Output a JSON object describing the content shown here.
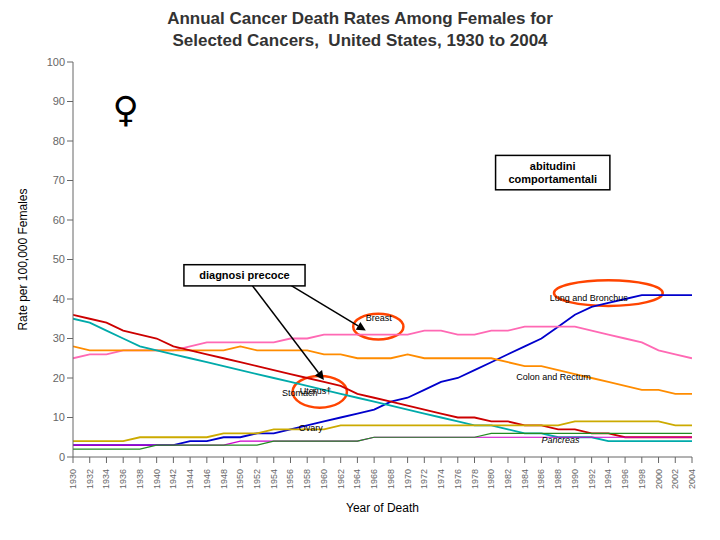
{
  "chart_data": {
    "type": "line",
    "title": "Annual Cancer Death Rates Among Females for",
    "subtitle": "Selected Cancers,  United States, 1930 to 2004",
    "xlabel": "Year of Death",
    "ylabel": "Rate per 100,000 Females",
    "x": [
      1930,
      1932,
      1934,
      1936,
      1938,
      1940,
      1942,
      1944,
      1946,
      1948,
      1950,
      1952,
      1954,
      1956,
      1958,
      1960,
      1962,
      1964,
      1966,
      1968,
      1970,
      1972,
      1974,
      1976,
      1978,
      1980,
      1982,
      1984,
      1986,
      1988,
      1990,
      1992,
      1994,
      1996,
      1998,
      2000,
      2002,
      2004
    ],
    "series": [
      {
        "name": "Lung and Bronchus",
        "color": "#0000cc",
        "values": [
          3,
          3,
          3,
          3,
          3,
          3,
          3,
          4,
          4,
          5,
          5,
          6,
          6,
          7,
          8,
          9,
          10,
          11,
          12,
          14,
          15,
          17,
          19,
          20,
          22,
          24,
          26,
          28,
          30,
          33,
          36,
          38,
          39,
          40,
          41,
          41,
          41,
          41
        ]
      },
      {
        "name": "Breast",
        "color": "#ff69b4",
        "values": [
          25,
          26,
          26,
          27,
          27,
          27,
          27,
          28,
          29,
          29,
          29,
          29,
          29,
          30,
          30,
          31,
          31,
          31,
          31,
          31,
          31,
          32,
          32,
          31,
          31,
          32,
          32,
          33,
          33,
          33,
          33,
          32,
          31,
          30,
          29,
          27,
          26,
          25
        ]
      },
      {
        "name": "Colon and Rectum",
        "color": "#ff8c00",
        "values": [
          28,
          27,
          27,
          27,
          27,
          27,
          27,
          27,
          27,
          27,
          28,
          27,
          27,
          27,
          27,
          26,
          26,
          25,
          25,
          25,
          26,
          25,
          25,
          25,
          25,
          25,
          24,
          23,
          23,
          22,
          21,
          20,
          19,
          18,
          17,
          17,
          16,
          16
        ]
      },
      {
        "name": "Stomach",
        "color": "#00aaaa",
        "values": [
          35,
          34,
          32,
          30,
          28,
          27,
          26,
          25,
          24,
          23,
          22,
          21,
          20,
          19,
          18,
          17,
          16,
          15,
          14,
          13,
          12,
          11,
          10,
          9,
          8,
          8,
          7,
          6,
          6,
          5,
          5,
          5,
          4,
          4,
          4,
          4,
          4,
          4
        ]
      },
      {
        "name": "Uterus†",
        "color": "#cc0000",
        "values": [
          36,
          35,
          34,
          32,
          31,
          30,
          28,
          27,
          26,
          25,
          24,
          23,
          22,
          21,
          20,
          19,
          18,
          16,
          15,
          14,
          13,
          12,
          11,
          10,
          10,
          9,
          9,
          8,
          8,
          7,
          7,
          6,
          6,
          5,
          5,
          5,
          5,
          5
        ]
      },
      {
        "name": "Ovary",
        "color": "#ccaa00",
        "values": [
          4,
          4,
          4,
          4,
          5,
          5,
          5,
          5,
          5,
          6,
          6,
          6,
          7,
          7,
          7,
          7,
          8,
          8,
          8,
          8,
          8,
          8,
          8,
          8,
          8,
          8,
          8,
          8,
          8,
          8,
          9,
          9,
          9,
          9,
          9,
          9,
          8,
          8
        ]
      },
      {
        "name": "Pancreas",
        "color": "#cc00cc",
        "values": [
          3,
          3,
          3,
          3,
          3,
          3,
          3,
          3,
          3,
          3,
          4,
          4,
          4,
          4,
          4,
          4,
          4,
          4,
          5,
          5,
          5,
          5,
          5,
          5,
          5,
          5,
          5,
          5,
          5,
          5,
          5,
          5,
          5,
          5,
          5,
          5,
          5,
          5
        ]
      },
      {
        "color": "#228b22",
        "values": [
          2,
          2,
          2,
          2,
          2,
          3,
          3,
          3,
          3,
          3,
          3,
          3,
          4,
          4,
          4,
          4,
          4,
          4,
          5,
          5,
          5,
          5,
          5,
          5,
          5,
          6,
          6,
          6,
          6,
          6,
          6,
          6,
          6,
          6,
          6,
          6,
          6,
          6
        ]
      }
    ],
    "xlim": [
      1930,
      2004
    ],
    "ylim": [
      0,
      100
    ],
    "xticks": [
      1930,
      1932,
      1934,
      1936,
      1938,
      1940,
      1942,
      1944,
      1946,
      1948,
      1950,
      1952,
      1954,
      1956,
      1958,
      1960,
      1962,
      1964,
      1966,
      1968,
      1970,
      1972,
      1974,
      1976,
      1978,
      1980,
      1982,
      1984,
      1986,
      1988,
      1990,
      1992,
      1994,
      1996,
      1998,
      2000,
      2002,
      2004
    ],
    "yticks": [
      0,
      10,
      20,
      30,
      40,
      50,
      60,
      70,
      80,
      90,
      100
    ],
    "grid": false,
    "annotations": [
      "diagnosi precoce",
      "abitudini\ncomportamentali",
      "♀"
    ]
  }
}
